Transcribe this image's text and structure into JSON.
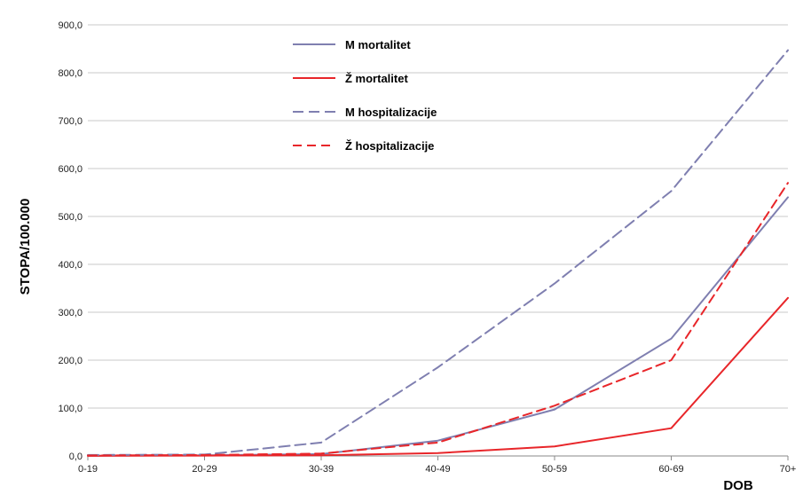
{
  "chart_data": {
    "type": "line",
    "categories": [
      "0-19",
      "20-29",
      "30-39",
      "40-49",
      "50-59",
      "60-69",
      "70+"
    ],
    "xlabel": "DOB",
    "ylabel": "STOPA/100.000",
    "ylim": [
      0,
      900
    ],
    "yticks": [
      "0,0",
      "100,0",
      "200,0",
      "300,0",
      "400,0",
      "500,0",
      "600,0",
      "700,0",
      "800,0",
      "900,0"
    ],
    "grid": true,
    "legend_position": "top-center",
    "series": [
      {
        "name": "M mortalitet",
        "color": "#7f7fb0",
        "dash": "solid",
        "values": [
          0.5,
          1.5,
          4,
          32,
          97,
          245,
          540
        ]
      },
      {
        "name": "Ž mortalitet",
        "color": "#e8262a",
        "dash": "solid",
        "values": [
          0.3,
          0.8,
          1.5,
          6,
          20,
          58,
          330
        ]
      },
      {
        "name": "M hospitalizacije",
        "color": "#7f7fb0",
        "dash": "dashed",
        "values": [
          2,
          3,
          28,
          185,
          360,
          553,
          847
        ]
      },
      {
        "name": "Ž hospitalizacije",
        "color": "#e8262a",
        "dash": "dashed",
        "values": [
          1,
          2,
          5,
          28,
          105,
          200,
          570
        ]
      }
    ]
  }
}
